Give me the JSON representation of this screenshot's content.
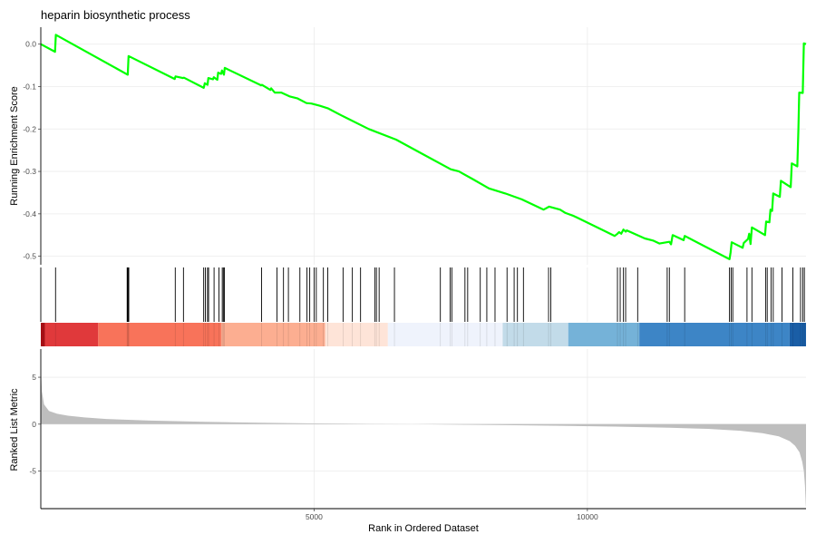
{
  "chart_data": {
    "type": "line",
    "title": "heparin biosynthetic process",
    "xlabel": "Rank in Ordered Dataset",
    "x_range": [
      0,
      14000
    ],
    "x_ticks": [
      5000,
      10000
    ],
    "grid": true,
    "running_es": {
      "ylabel": "Running Enrichment Score",
      "ylim": [
        -0.52,
        0.04
      ],
      "y_ticks": [
        0.0,
        -0.1,
        -0.2,
        -0.3,
        -0.4,
        -0.5
      ],
      "y_tick_labels": [
        "0.0",
        "-0.1",
        "-0.2",
        "-0.3",
        "-0.4",
        "-0.5"
      ],
      "color": "#00ff00",
      "points": [
        [
          0,
          0.0
        ],
        [
          260,
          -0.018
        ],
        [
          275,
          0.022
        ],
        [
          1590,
          -0.072
        ],
        [
          1605,
          -0.028
        ],
        [
          2450,
          -0.082
        ],
        [
          2465,
          -0.076
        ],
        [
          2600,
          -0.08
        ],
        [
          2620,
          -0.079
        ],
        [
          2980,
          -0.103
        ],
        [
          3000,
          -0.092
        ],
        [
          3050,
          -0.096
        ],
        [
          3065,
          -0.08
        ],
        [
          3150,
          -0.083
        ],
        [
          3165,
          -0.078
        ],
        [
          3230,
          -0.084
        ],
        [
          3245,
          -0.067
        ],
        [
          3300,
          -0.07
        ],
        [
          3315,
          -0.062
        ],
        [
          3350,
          -0.072
        ],
        [
          3365,
          -0.056
        ],
        [
          4030,
          -0.097
        ],
        [
          4045,
          -0.096
        ],
        [
          4200,
          -0.108
        ],
        [
          4215,
          -0.104
        ],
        [
          4280,
          -0.114
        ],
        [
          4400,
          -0.114
        ],
        [
          4550,
          -0.123
        ],
        [
          4700,
          -0.128
        ],
        [
          4860,
          -0.139
        ],
        [
          4950,
          -0.14
        ],
        [
          5100,
          -0.145
        ],
        [
          5250,
          -0.151
        ],
        [
          5500,
          -0.168
        ],
        [
          6000,
          -0.2
        ],
        [
          6500,
          -0.225
        ],
        [
          7000,
          -0.26
        ],
        [
          7500,
          -0.295
        ],
        [
          7650,
          -0.3
        ],
        [
          7900,
          -0.318
        ],
        [
          8200,
          -0.34
        ],
        [
          8500,
          -0.352
        ],
        [
          8800,
          -0.366
        ],
        [
          9200,
          -0.39
        ],
        [
          9300,
          -0.383
        ],
        [
          9500,
          -0.39
        ],
        [
          9600,
          -0.398
        ],
        [
          9750,
          -0.405
        ],
        [
          10500,
          -0.452
        ],
        [
          10550,
          -0.447
        ],
        [
          10580,
          -0.443
        ],
        [
          10620,
          -0.447
        ],
        [
          10660,
          -0.437
        ],
        [
          10700,
          -0.442
        ],
        [
          10720,
          -0.439
        ],
        [
          11050,
          -0.458
        ],
        [
          11200,
          -0.463
        ],
        [
          11320,
          -0.47
        ],
        [
          11500,
          -0.466
        ],
        [
          11530,
          -0.472
        ],
        [
          11560,
          -0.45
        ],
        [
          11760,
          -0.462
        ],
        [
          11780,
          -0.452
        ],
        [
          12600,
          -0.507
        ],
        [
          12620,
          -0.491
        ],
        [
          12640,
          -0.467
        ],
        [
          12840,
          -0.48
        ],
        [
          12860,
          -0.469
        ],
        [
          12940,
          -0.459
        ],
        [
          12960,
          -0.447
        ],
        [
          12985,
          -0.471
        ],
        [
          13010,
          -0.432
        ],
        [
          13250,
          -0.45
        ],
        [
          13270,
          -0.418
        ],
        [
          13330,
          -0.42
        ],
        [
          13350,
          -0.39
        ],
        [
          13380,
          -0.393
        ],
        [
          13400,
          -0.352
        ],
        [
          13520,
          -0.36
        ],
        [
          13540,
          -0.322
        ],
        [
          13720,
          -0.337
        ],
        [
          13740,
          -0.281
        ],
        [
          13840,
          -0.288
        ],
        [
          13860,
          -0.2
        ],
        [
          13875,
          -0.114
        ],
        [
          13940,
          -0.115
        ],
        [
          13960,
          0.002
        ],
        [
          14000,
          0.0
        ]
      ]
    },
    "gene_hits": [
      270,
      1580,
      1590,
      1600,
      1610,
      2460,
      2610,
      2980,
      3010,
      3050,
      3070,
      3170,
      3260,
      3320,
      3340,
      3360,
      4040,
      4320,
      4440,
      4530,
      4740,
      4870,
      4920,
      5000,
      5040,
      5170,
      5250,
      5530,
      5700,
      5850,
      6110,
      6140,
      6190,
      6470,
      7310,
      7490,
      7520,
      7760,
      7810,
      8040,
      8160,
      8310,
      8530,
      8660,
      8720,
      8830,
      9290,
      9330,
      10550,
      10600,
      10660,
      10700,
      10920,
      11460,
      11500,
      11780,
      12600,
      12630,
      12660,
      12920,
      13010,
      13260,
      13290,
      13360,
      13400,
      13560,
      13760,
      13900,
      13940,
      13970
    ],
    "rank_colors": [
      {
        "from": 0,
        "to": 75,
        "color": "#a50f15"
      },
      {
        "from": 75,
        "to": 1050,
        "color": "#e0393b"
      },
      {
        "from": 1050,
        "to": 3300,
        "color": "#f8735a"
      },
      {
        "from": 3300,
        "to": 5200,
        "color": "#fcae91"
      },
      {
        "from": 5200,
        "to": 6350,
        "color": "#fee4d8"
      },
      {
        "from": 6350,
        "to": 8450,
        "color": "#eff3fc"
      },
      {
        "from": 8450,
        "to": 9650,
        "color": "#c2dbe9"
      },
      {
        "from": 9650,
        "to": 10950,
        "color": "#75b2d8"
      },
      {
        "from": 10950,
        "to": 13700,
        "color": "#3d85c6"
      },
      {
        "from": 13700,
        "to": 14000,
        "color": "#1a5ea6"
      }
    ],
    "ranked_metric": {
      "ylabel": "Ranked List Metric",
      "ylim": [
        -9,
        8
      ],
      "y_ticks": [
        5,
        0,
        -5
      ],
      "y_tick_labels": [
        "5",
        "0",
        "-5"
      ],
      "color": "#bebebe",
      "points": [
        [
          0,
          6.3
        ],
        [
          20,
          3.5
        ],
        [
          60,
          2.1
        ],
        [
          150,
          1.4
        ],
        [
          300,
          1.1
        ],
        [
          500,
          0.9
        ],
        [
          800,
          0.72
        ],
        [
          1200,
          0.55
        ],
        [
          2000,
          0.38
        ],
        [
          3000,
          0.25
        ],
        [
          4000,
          0.15
        ],
        [
          5000,
          0.08
        ],
        [
          6000,
          0.03
        ],
        [
          6800,
          0.0
        ],
        [
          7500,
          -0.04
        ],
        [
          8500,
          -0.1
        ],
        [
          9500,
          -0.17
        ],
        [
          10500,
          -0.26
        ],
        [
          11500,
          -0.38
        ],
        [
          12200,
          -0.5
        ],
        [
          12800,
          -0.7
        ],
        [
          13200,
          -0.95
        ],
        [
          13500,
          -1.3
        ],
        [
          13700,
          -1.8
        ],
        [
          13800,
          -2.3
        ],
        [
          13880,
          -3.0
        ],
        [
          13930,
          -4.0
        ],
        [
          13960,
          -5.0
        ],
        [
          13980,
          -6.5
        ],
        [
          13995,
          -8.5
        ],
        [
          14000,
          -8.9
        ]
      ]
    }
  }
}
